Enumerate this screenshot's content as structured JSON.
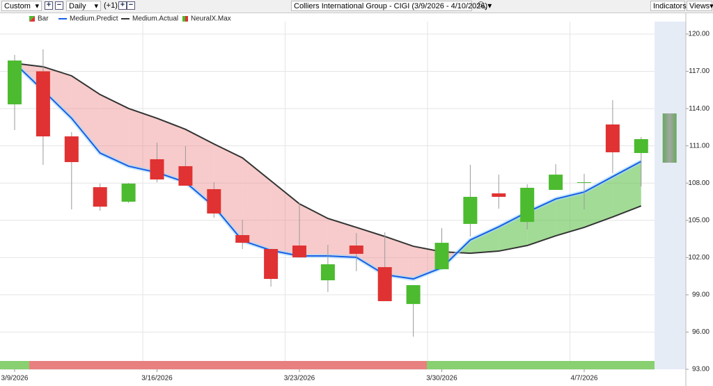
{
  "toolbar": {
    "range": "Custom",
    "interval": "Daily",
    "offset": "(+1)",
    "title": "Colliers International Group - CIGI (3/9/2026 - 4/10/2026)",
    "indicators": "Indicators",
    "views": "Views"
  },
  "chart_data": {
    "type": "candlestick",
    "categories": [
      "3/9/2026",
      null,
      null,
      null,
      null,
      "3/16/2026",
      null,
      null,
      null,
      null,
      "3/23/2026",
      null,
      null,
      null,
      null,
      "3/30/2026",
      null,
      null,
      null,
      null,
      "4/7/2026",
      null,
      null,
      null
    ],
    "series": [
      {
        "name": "Bar",
        "up_color": "#4cbb2f",
        "down_color": "#e03232",
        "open": [
          114.34,
          117.0,
          111.76,
          107.67,
          106.5,
          109.92,
          109.36,
          107.51,
          103.81,
          102.69,
          102.97,
          100.17,
          102.97,
          101.23,
          98.26,
          101.06,
          104.71,
          107.17,
          104.87,
          107.45,
          108.07,
          112.72,
          110.42,
          null
        ],
        "high": [
          118.32,
          118.77,
          112.1,
          107.96,
          108.0,
          111.26,
          110.98,
          108.07,
          105.04,
          102.69,
          106.39,
          103.03,
          103.98,
          104.03,
          99.78,
          104.37,
          109.47,
          108.68,
          107.9,
          109.52,
          108.74,
          114.68,
          111.71,
          null
        ],
        "low": [
          112.27,
          109.47,
          105.88,
          105.77,
          106.4,
          108.07,
          107.79,
          105.21,
          102.69,
          99.66,
          102.02,
          99.22,
          100.9,
          98.49,
          95.63,
          101.06,
          103.7,
          105.94,
          104.26,
          107.45,
          105.88,
          108.8,
          107.73,
          null
        ],
        "close": [
          117.87,
          111.76,
          109.69,
          106.1,
          107.96,
          108.29,
          107.79,
          105.55,
          103.19,
          100.28,
          102.02,
          101.46,
          102.3,
          98.49,
          99.78,
          103.19,
          106.89,
          106.89,
          107.62,
          108.68,
          108.07,
          110.48,
          111.54,
          null
        ]
      },
      {
        "name": "Medium.Predict",
        "color": "#1560e8",
        "values": [
          117.65,
          115.46,
          113.22,
          110.42,
          109.36,
          108.85,
          108.07,
          106.11,
          103.36,
          102.58,
          102.13,
          102.13,
          102.02,
          100.62,
          100.28,
          101.18,
          103.42,
          104.48,
          105.66,
          106.72,
          107.28,
          108.52,
          109.75,
          null
        ]
      },
      {
        "name": "Medium.Actual",
        "color": "#333333",
        "values": [
          117.65,
          117.37,
          116.64,
          115.13,
          114.01,
          113.22,
          112.33,
          111.15,
          110.03,
          108.18,
          106.33,
          105.15,
          104.43,
          103.7,
          102.91,
          102.47,
          102.35,
          102.52,
          102.97,
          103.75,
          104.43,
          105.27,
          106.16,
          null
        ]
      },
      {
        "name": "NeuralX.Max",
        "color": "#8aa888",
        "high": [
          null,
          null,
          null,
          null,
          null,
          null,
          null,
          null,
          null,
          null,
          null,
          null,
          null,
          null,
          null,
          null,
          null,
          null,
          null,
          null,
          null,
          null,
          null,
          113.61
        ],
        "low": [
          null,
          null,
          null,
          null,
          null,
          null,
          null,
          null,
          null,
          null,
          null,
          null,
          null,
          null,
          null,
          null,
          null,
          null,
          null,
          null,
          null,
          null,
          null,
          109.64
        ]
      }
    ],
    "ylim": [
      93,
      120
    ],
    "yticks": [
      {
        "value": 120,
        "label": "120.00"
      },
      {
        "value": 117,
        "label": "117.00"
      },
      {
        "value": 114,
        "label": "114.00"
      },
      {
        "value": 111,
        "label": "111.00"
      },
      {
        "value": 108,
        "label": "108.00"
      },
      {
        "value": 105,
        "label": "105.00"
      },
      {
        "value": 102,
        "label": "102.00"
      },
      {
        "value": 99,
        "label": "99.00"
      },
      {
        "value": 96,
        "label": "96.00"
      },
      {
        "value": 93,
        "label": "93.00"
      }
    ],
    "grid": true
  }
}
